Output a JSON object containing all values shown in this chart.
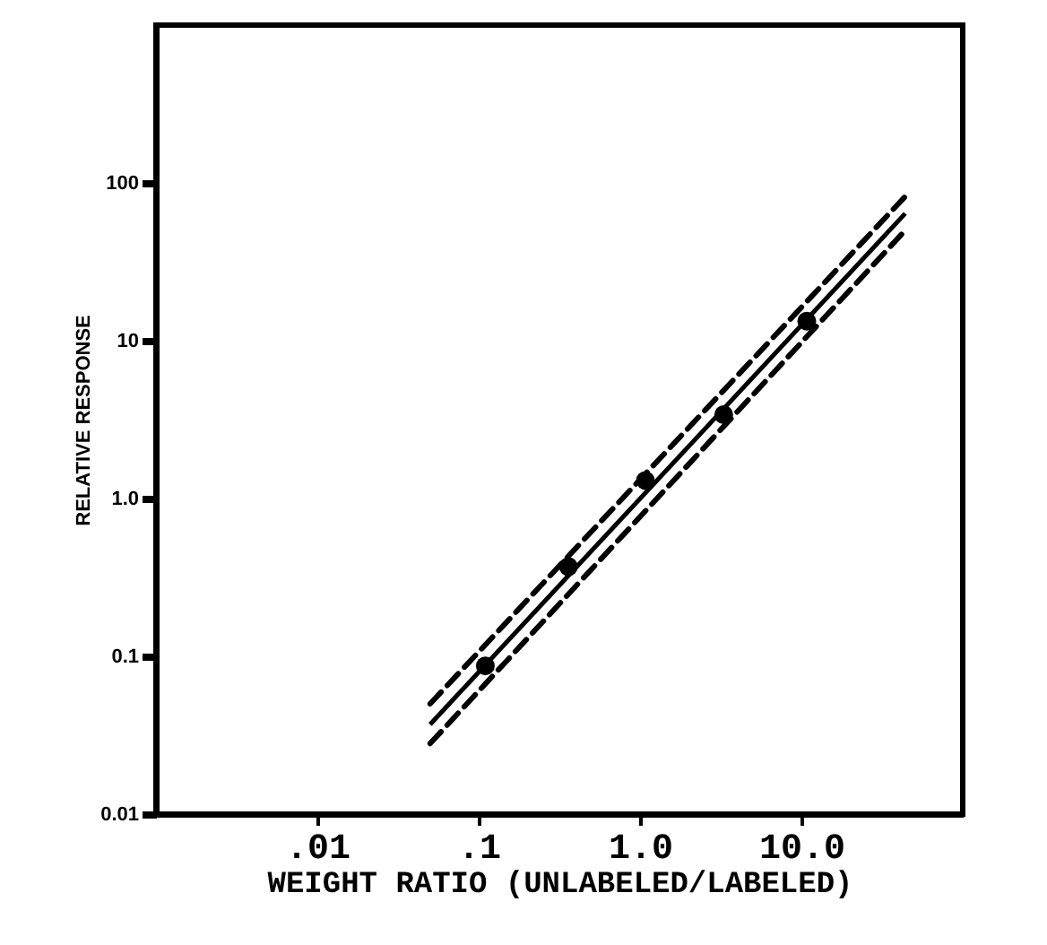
{
  "chart_data": {
    "type": "scatter",
    "xlabel": "WEIGHT RATIO (UNLABELED/LABELED)",
    "ylabel": "RELATIVE RESPONSE",
    "log": "xy",
    "marker": "circle",
    "xlim": [
      0.001,
      100
    ],
    "ylim": [
      0.01,
      1000
    ],
    "xticks": [
      {
        "value": 0.01,
        "label": ".01"
      },
      {
        "value": 0.1,
        "label": ".1"
      },
      {
        "value": 1,
        "label": "1.0"
      },
      {
        "value": 10,
        "label": "10.0"
      }
    ],
    "yticks": [
      0.01,
      0.1,
      {
        "value": 1,
        "label": "1.0"
      },
      10,
      100
    ],
    "grid": false,
    "series": [
      {
        "color": "#000000",
        "x": [
          0.11,
          0.36,
          1.08,
          3.3,
          10.8
        ],
        "values": [
          0.087,
          0.37,
          1.3,
          3.4,
          13.3
        ]
      },
      {
        "type": "line",
        "color": "#000000",
        "marker": "none",
        "line_style": "solid",
        "x": [
          0.05,
          44
        ],
        "values": [
          0.037,
          64
        ]
      },
      {
        "type": "line",
        "color": "#000000",
        "marker": "none",
        "line_style": "dashed",
        "x": [
          0.05,
          44
        ],
        "values": [
          0.05,
          82
        ]
      },
      {
        "type": "line",
        "color": "#000000",
        "marker": "none",
        "line_style": "dashed",
        "x": [
          0.05,
          44
        ],
        "values": [
          0.028,
          50
        ]
      }
    ]
  }
}
